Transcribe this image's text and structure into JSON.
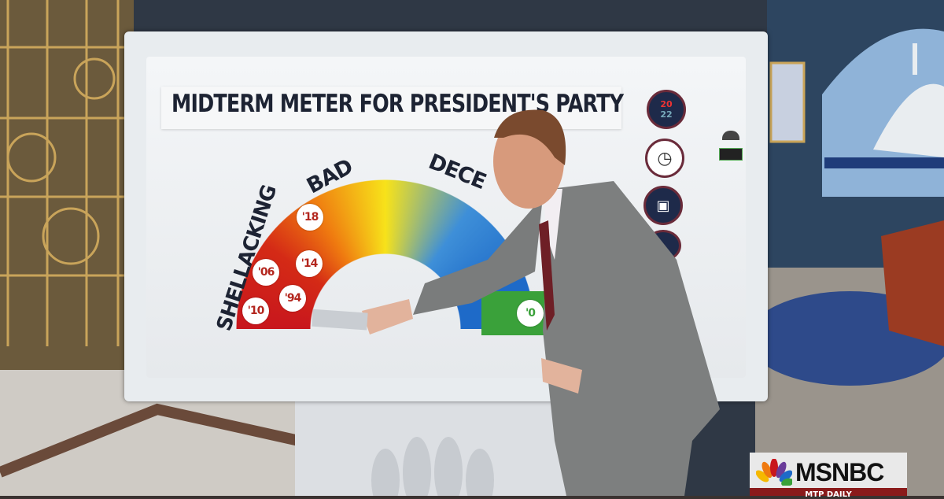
{
  "graphic": {
    "title": "MIDTERM METER FOR PRESIDENT'S PARTY",
    "scale_labels": [
      "SHELLACKING",
      "BAD",
      "DECE"
    ],
    "year_badges": [
      "'18",
      "'06",
      "'14",
      "'94",
      "'10",
      "'0"
    ],
    "nav_icons": [
      "2022-logo-icon",
      "history-clock-icon",
      "us-map-icon",
      "more-icon"
    ],
    "logo_2022": {
      "top": "20",
      "bottom": "22"
    }
  },
  "broadcast": {
    "network": "MSNBC",
    "network_logo": "peacock-icon",
    "show_bar": "MTP DAILY"
  },
  "colors": {
    "shellacking": "#c8161d",
    "bad": "#ef7a10",
    "mid": "#f7e21a",
    "decent": "#1e6ac8",
    "good": "#3aa13a"
  }
}
